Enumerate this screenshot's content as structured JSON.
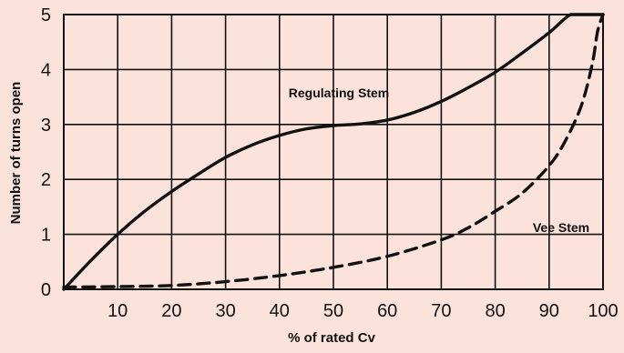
{
  "chart_data": {
    "type": "line",
    "title": "",
    "xlabel": "% of rated Cv",
    "ylabel": "Number of turns open",
    "xlim": [
      0,
      100
    ],
    "ylim": [
      0,
      5
    ],
    "x_ticks": [
      10,
      20,
      30,
      40,
      50,
      60,
      70,
      80,
      90,
      100
    ],
    "y_ticks": [
      0,
      1,
      2,
      3,
      4,
      5
    ],
    "grid": true,
    "colors": {
      "background": "#fbe3dc",
      "lines": "#111111",
      "grid": "#111111"
    },
    "series": [
      {
        "name": "Regulating Stem",
        "style": "solid",
        "x": [
          0,
          5,
          10,
          15,
          20,
          25,
          30,
          35,
          40,
          45,
          50,
          55,
          60,
          65,
          70,
          75,
          80,
          85,
          90,
          94,
          97,
          100
        ],
        "y": [
          0,
          0.52,
          1.0,
          1.42,
          1.78,
          2.1,
          2.4,
          2.63,
          2.8,
          2.92,
          2.98,
          3.01,
          3.08,
          3.22,
          3.42,
          3.67,
          3.95,
          4.3,
          4.67,
          5.0,
          5.0,
          5.0
        ]
      },
      {
        "name": "Vee Stem",
        "style": "dashed",
        "x": [
          0,
          10,
          20,
          30,
          40,
          50,
          60,
          70,
          75,
          80,
          85,
          90,
          93,
          96,
          98,
          99,
          100
        ],
        "y": [
          0.04,
          0.05,
          0.07,
          0.14,
          0.25,
          0.4,
          0.6,
          0.9,
          1.12,
          1.42,
          1.75,
          2.25,
          2.7,
          3.35,
          4.1,
          4.7,
          5.0
        ]
      }
    ],
    "annotations": [
      {
        "text": "Regulating Stem",
        "series": "Regulating Stem"
      },
      {
        "text": "Vee Stem",
        "series": "Vee Stem"
      }
    ]
  }
}
